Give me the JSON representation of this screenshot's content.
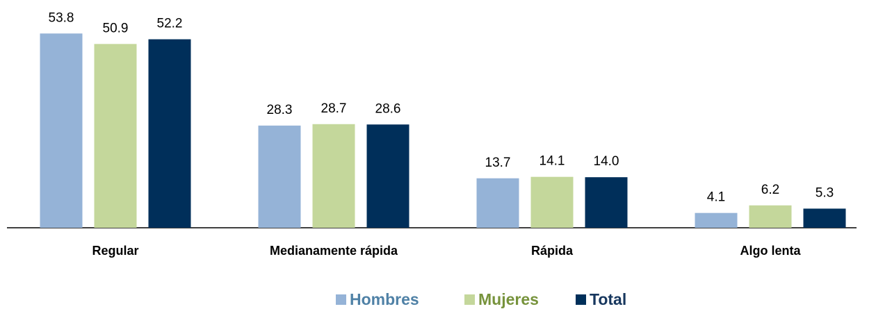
{
  "chart_data": {
    "type": "bar",
    "categories": [
      "Regular",
      "Medianamente rápida",
      "Rápida",
      "Algo lenta"
    ],
    "series": [
      {
        "name": "Hombres",
        "color": "#95b3d7",
        "legend_text_color": "#4f81a6",
        "values": [
          53.8,
          28.3,
          13.7,
          4.1
        ],
        "value_labels": [
          "53.8",
          "28.3",
          "13.7",
          "4.1"
        ]
      },
      {
        "name": "Mujeres",
        "color": "#c4d79b",
        "legend_text_color": "#77933c",
        "values": [
          50.9,
          28.7,
          14.1,
          6.2
        ],
        "value_labels": [
          "50.9",
          "28.7",
          "14.1",
          "6.2"
        ]
      },
      {
        "name": "Total",
        "color": "#002f5a",
        "legend_text_color": "#17375e",
        "values": [
          52.2,
          28.6,
          14.0,
          5.3
        ],
        "value_labels": [
          "52.2",
          "28.6",
          "14.0",
          "5.3"
        ]
      }
    ],
    "legend": "bottom"
  }
}
